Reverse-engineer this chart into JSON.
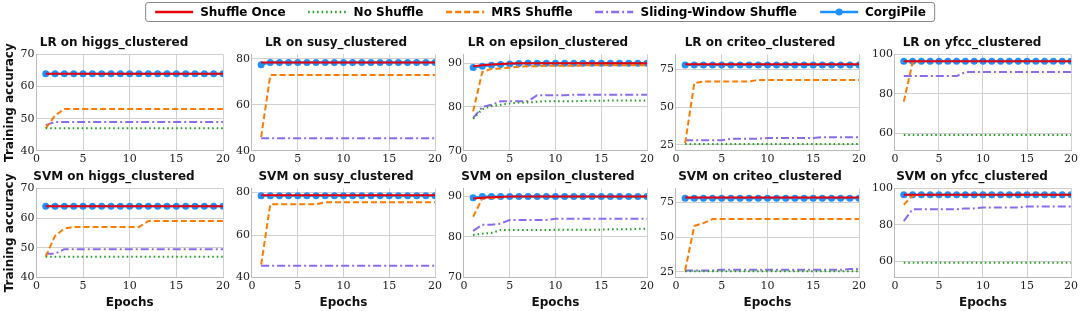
{
  "chart_data": [
    {
      "type": "line",
      "title": "LR on higgs_clustered",
      "ylabel": "Training accuracy",
      "x": [
        1,
        2,
        3,
        4,
        5,
        6,
        7,
        8,
        9,
        10,
        11,
        12,
        13,
        14,
        15,
        16,
        17,
        18,
        19,
        20
      ],
      "xlim": [
        0,
        20
      ],
      "xticks": [
        0,
        5,
        10,
        15,
        20
      ],
      "ylim": [
        40,
        70
      ],
      "yticks": [
        40,
        50,
        60,
        70
      ],
      "grid": true,
      "legend": "top",
      "series": [
        {
          "name": "Shuffle Once",
          "color": "#e8000b",
          "line_style": "solid",
          "marker": "none",
          "values": [
            64,
            64,
            64,
            64,
            64,
            64,
            64,
            64,
            64,
            64,
            64,
            64,
            64,
            64,
            64,
            64,
            64,
            64,
            64,
            64
          ]
        },
        {
          "name": "No Shuffle",
          "color": "#1a9e1a",
          "line_style": "dotted",
          "marker": "none",
          "values": [
            47,
            47,
            47,
            47,
            47,
            47,
            47,
            47,
            47,
            47,
            47,
            47,
            47,
            47,
            47,
            47,
            47,
            47,
            47,
            47
          ]
        },
        {
          "name": "MRS Shuffle",
          "color": "#ff7c00",
          "line_style": "dashed",
          "marker": "none",
          "values": [
            47,
            51,
            53,
            53,
            53,
            53,
            53,
            53,
            53,
            53,
            53,
            53,
            53,
            53,
            53,
            53,
            53,
            53,
            53,
            53
          ]
        },
        {
          "name": "Sliding-Window Shuffle",
          "color": "#8b6cf0",
          "line_style": "dashdot",
          "marker": "none",
          "values": [
            48,
            49,
            49,
            49,
            49,
            49,
            49,
            49,
            49,
            49,
            49,
            49,
            49,
            49,
            49,
            49,
            49,
            49,
            49,
            49
          ]
        },
        {
          "name": "CorgiPile",
          "color": "#1e90ff",
          "line_style": "solid",
          "marker": "circle",
          "values": [
            64,
            64,
            64,
            64,
            64,
            64,
            64,
            64,
            64,
            64,
            64,
            64,
            64,
            64,
            64,
            64,
            64,
            64,
            64,
            64
          ]
        }
      ]
    },
    {
      "type": "line",
      "title": "LR on susy_clustered",
      "x": [
        1,
        2,
        3,
        4,
        5,
        6,
        7,
        8,
        9,
        10,
        11,
        12,
        13,
        14,
        15,
        16,
        17,
        18,
        19,
        20
      ],
      "xlim": [
        0,
        20
      ],
      "xticks": [
        0,
        5,
        10,
        15,
        20
      ],
      "ylim": [
        40,
        82
      ],
      "yticks": [
        40,
        60,
        80
      ],
      "grid": true,
      "series": [
        {
          "color": "#e8000b",
          "line_style": "solid",
          "marker": "none",
          "values": [
            78.5,
            78.5,
            78.5,
            78.5,
            78.5,
            78.5,
            78.5,
            78.5,
            78.5,
            78.5,
            78.5,
            78.5,
            78.5,
            78.5,
            78.5,
            78.5,
            78.5,
            78.5,
            78.5,
            78.5
          ]
        },
        {
          "color": "#1a9e1a",
          "line_style": "dotted",
          "marker": "none",
          "values": [
            null,
            null,
            null,
            null,
            null,
            null,
            null,
            null,
            null,
            null,
            null,
            null,
            null,
            null,
            null,
            null,
            null,
            null,
            null,
            null
          ]
        },
        {
          "color": "#ff7c00",
          "line_style": "dashed",
          "marker": "none",
          "values": [
            46,
            73,
            73,
            73,
            73,
            73,
            73,
            73,
            73,
            73,
            73,
            73,
            73,
            73,
            73,
            73,
            73,
            73,
            73,
            73
          ]
        },
        {
          "color": "#8b6cf0",
          "line_style": "dashdot",
          "marker": "none",
          "values": [
            45.5,
            45.5,
            45.5,
            45.5,
            45.5,
            45.5,
            45.5,
            45.5,
            45.5,
            45.5,
            45.5,
            45.5,
            45.5,
            45.5,
            45.5,
            45.5,
            45.5,
            45.5,
            45.5,
            45.5
          ]
        },
        {
          "color": "#1e90ff",
          "line_style": "solid",
          "marker": "circle",
          "values": [
            77.5,
            78.5,
            78.5,
            78.5,
            78.5,
            78.5,
            78.5,
            78.5,
            78.5,
            78.5,
            78.5,
            78.5,
            78.5,
            78.5,
            78.5,
            78.5,
            78.5,
            78.5,
            78.5,
            78.5
          ]
        }
      ]
    },
    {
      "type": "line",
      "title": "LR on epsilon_clustered",
      "x": [
        1,
        2,
        3,
        4,
        5,
        6,
        7,
        8,
        9,
        10,
        11,
        12,
        13,
        14,
        15,
        16,
        17,
        18,
        19,
        20
      ],
      "xlim": [
        0,
        20
      ],
      "xticks": [
        0,
        5,
        10,
        15,
        20
      ],
      "ylim": [
        70,
        92
      ],
      "yticks": [
        70,
        80,
        90
      ],
      "grid": true,
      "series": [
        {
          "color": "#e8000b",
          "line_style": "solid",
          "marker": "none",
          "values": [
            89.3,
            89.5,
            89.7,
            89.8,
            89.9,
            90,
            90,
            90,
            90,
            90,
            90,
            90,
            90,
            90,
            90,
            90,
            90,
            90,
            90,
            90
          ]
        },
        {
          "color": "#1a9e1a",
          "line_style": "dotted",
          "marker": "none",
          "values": [
            77.3,
            79.5,
            80.2,
            80.5,
            80.8,
            81,
            81,
            81.2,
            81.3,
            81.3,
            81.3,
            81.3,
            81.4,
            81.4,
            81.4,
            81.5,
            81.5,
            81.5,
            81.5,
            81.5
          ]
        },
        {
          "color": "#ff7c00",
          "line_style": "dashed",
          "marker": "none",
          "values": [
            79,
            88,
            88.7,
            88.8,
            89,
            89.2,
            89.3,
            89.3,
            89.4,
            89.4,
            89.4,
            89.4,
            89.5,
            89.5,
            89.5,
            89.5,
            89.5,
            89.5,
            89.5,
            89.5
          ]
        },
        {
          "color": "#8b6cf0",
          "line_style": "dashdot",
          "marker": "none",
          "values": [
            77.5,
            80,
            80.5,
            81.3,
            81.3,
            81.3,
            81.3,
            82.7,
            82.7,
            82.7,
            82.7,
            82.8,
            82.8,
            82.8,
            82.8,
            82.8,
            82.8,
            82.8,
            82.8,
            82.8
          ]
        },
        {
          "color": "#1e90ff",
          "line_style": "solid",
          "marker": "circle",
          "values": [
            89,
            89.3,
            89.5,
            89.7,
            89.8,
            89.9,
            90,
            90,
            90,
            90,
            90,
            90,
            90,
            90,
            90,
            90,
            90,
            90,
            90,
            90
          ]
        }
      ]
    },
    {
      "type": "line",
      "title": "LR on criteo_clustered",
      "x": [
        1,
        2,
        3,
        4,
        5,
        6,
        7,
        8,
        9,
        10,
        11,
        12,
        13,
        14,
        15,
        16,
        17,
        18,
        19,
        20
      ],
      "xlim": [
        0,
        20
      ],
      "xticks": [
        0,
        5,
        10,
        15,
        20
      ],
      "ylim": [
        21,
        85
      ],
      "yticks": [
        25,
        50,
        75
      ],
      "grid": true,
      "series": [
        {
          "color": "#e8000b",
          "line_style": "solid",
          "marker": "none",
          "values": [
            78.5,
            78.5,
            78.5,
            78.5,
            78.5,
            78.5,
            78.5,
            78.5,
            78.5,
            78.5,
            78.5,
            78.5,
            78.5,
            78.5,
            78.5,
            78.5,
            78.5,
            78.5,
            78.5,
            78.5
          ]
        },
        {
          "color": "#1a9e1a",
          "line_style": "dotted",
          "marker": "none",
          "values": [
            25.5,
            25.5,
            25.5,
            25.5,
            25.5,
            25.5,
            25.5,
            25.5,
            25.5,
            25.5,
            25.5,
            25.5,
            25.5,
            25.5,
            25.5,
            25.5,
            25.5,
            25.5,
            25.5,
            25.5
          ]
        },
        {
          "color": "#ff7c00",
          "line_style": "dashed",
          "marker": "none",
          "values": [
            26,
            66,
            67,
            67,
            67,
            67,
            67,
            67,
            68,
            68,
            68,
            68,
            68,
            68,
            68,
            68,
            68,
            68,
            68,
            68
          ]
        },
        {
          "color": "#8b6cf0",
          "line_style": "dashdot",
          "marker": "none",
          "values": [
            28,
            28,
            28,
            28,
            28,
            29,
            29,
            29,
            29,
            29.5,
            29.5,
            29.5,
            29.5,
            29.5,
            29.5,
            30,
            30,
            30,
            30,
            30
          ]
        },
        {
          "color": "#1e90ff",
          "line_style": "solid",
          "marker": "circle",
          "values": [
            78,
            78,
            78,
            78,
            78,
            78,
            78,
            78,
            78,
            78,
            78,
            78,
            78,
            78,
            78,
            78,
            78,
            78,
            78,
            78
          ]
        }
      ]
    },
    {
      "type": "line",
      "title": "LR on yfcc_clustered",
      "x": [
        1,
        2,
        3,
        4,
        5,
        6,
        7,
        8,
        9,
        10,
        11,
        12,
        13,
        14,
        15,
        16,
        17,
        18,
        19,
        20
      ],
      "xlim": [
        0,
        20
      ],
      "xticks": [
        0,
        5,
        10,
        15,
        20
      ],
      "ylim": [
        51,
        100
      ],
      "yticks": [
        60,
        80,
        100
      ],
      "grid": true,
      "series": [
        {
          "color": "#e8000b",
          "line_style": "solid",
          "marker": "none",
          "values": [
            96.5,
            96.5,
            96.5,
            96.5,
            96.5,
            96.5,
            96.5,
            96.5,
            96.5,
            96.5,
            96.5,
            96.5,
            96.5,
            96.5,
            96.5,
            96.5,
            96.5,
            96.5,
            96.5,
            96.5
          ]
        },
        {
          "color": "#1a9e1a",
          "line_style": "dotted",
          "marker": "none",
          "values": [
            59,
            59,
            59,
            59,
            59,
            59,
            59,
            59,
            59,
            59,
            59,
            59,
            59,
            59,
            59,
            59,
            59,
            59,
            59,
            59
          ]
        },
        {
          "color": "#ff7c00",
          "line_style": "dashed",
          "marker": "none",
          "values": [
            76,
            96,
            96.5,
            null,
            null,
            null,
            null,
            null,
            null,
            null,
            null,
            null,
            null,
            null,
            null,
            null,
            null,
            null,
            null,
            null
          ]
        },
        {
          "color": "#8b6cf0",
          "line_style": "dashdot",
          "marker": "none",
          "values": [
            89,
            89,
            89,
            89,
            89,
            89,
            89,
            91,
            91,
            91,
            91,
            91,
            91,
            91,
            91,
            91,
            91,
            91,
            91,
            91
          ]
        },
        {
          "color": "#1e90ff",
          "line_style": "solid",
          "marker": "circle",
          "values": [
            96.5,
            96.5,
            96.5,
            96.5,
            96.5,
            96.5,
            96.5,
            96.5,
            96.5,
            96.5,
            96.5,
            96.5,
            96.5,
            96.5,
            96.5,
            96.5,
            96.5,
            96.5,
            96.5,
            96.5
          ]
        }
      ]
    },
    {
      "type": "line",
      "title": "SVM on higgs_clustered",
      "ylabel": "Training accuracy",
      "xlabel": "Epochs",
      "x": [
        1,
        2,
        3,
        4,
        5,
        6,
        7,
        8,
        9,
        10,
        11,
        12,
        13,
        14,
        15,
        16,
        17,
        18,
        19,
        20
      ],
      "xlim": [
        0,
        20
      ],
      "xticks": [
        0,
        5,
        10,
        15,
        20
      ],
      "ylim": [
        40,
        70
      ],
      "yticks": [
        40,
        50,
        60,
        70
      ],
      "grid": true,
      "series": [
        {
          "color": "#e8000b",
          "line_style": "solid",
          "marker": "none",
          "values": [
            64,
            64,
            64,
            64,
            64,
            64,
            64,
            64,
            64,
            64,
            64,
            64,
            64,
            64,
            64,
            64,
            64,
            64,
            64,
            64
          ]
        },
        {
          "color": "#1a9e1a",
          "line_style": "dotted",
          "marker": "none",
          "values": [
            47,
            47,
            47,
            47,
            47,
            47,
            47,
            47,
            47,
            47,
            47,
            47,
            47,
            47,
            47,
            47,
            47,
            47,
            47,
            47
          ]
        },
        {
          "color": "#ff7c00",
          "line_style": "dashed",
          "marker": "none",
          "values": [
            47,
            54,
            56.5,
            57,
            57,
            57,
            57,
            57,
            57,
            57,
            57,
            59,
            59,
            59,
            59,
            59,
            59,
            59,
            59,
            59
          ]
        },
        {
          "color": "#8b6cf0",
          "line_style": "dashdot",
          "marker": "none",
          "values": [
            48,
            48,
            49.5,
            49.5,
            49.5,
            49.5,
            49.5,
            49.5,
            49.5,
            49.5,
            49.5,
            49.5,
            49.5,
            49.5,
            49.5,
            49.5,
            49.5,
            49.5,
            49.5,
            49.5
          ]
        },
        {
          "color": "#1e90ff",
          "line_style": "solid",
          "marker": "circle",
          "values": [
            64,
            64,
            64,
            64,
            64,
            64,
            64,
            64,
            64,
            64,
            64,
            64,
            64,
            64,
            64,
            64,
            64,
            64,
            64,
            64
          ]
        }
      ]
    },
    {
      "type": "line",
      "title": "SVM on susy_clustered",
      "xlabel": "Epochs",
      "x": [
        1,
        2,
        3,
        4,
        5,
        6,
        7,
        8,
        9,
        10,
        11,
        12,
        13,
        14,
        15,
        16,
        17,
        18,
        19,
        20
      ],
      "xlim": [
        0,
        20
      ],
      "xticks": [
        0,
        5,
        10,
        15,
        20
      ],
      "ylim": [
        40,
        82
      ],
      "yticks": [
        40,
        60,
        80
      ],
      "grid": true,
      "series": [
        {
          "color": "#e8000b",
          "line_style": "solid",
          "marker": "none",
          "values": [
            78.8,
            78.8,
            78.8,
            78.8,
            78.8,
            78.8,
            78.8,
            78.8,
            78.8,
            78.8,
            78.8,
            78.8,
            78.8,
            78.8,
            78.8,
            78.8,
            78.8,
            78.8,
            78.8,
            78.8
          ]
        },
        {
          "color": "#1a9e1a",
          "line_style": "dotted",
          "marker": "none",
          "values": [
            null,
            null,
            null,
            null,
            null,
            null,
            null,
            null,
            null,
            null,
            null,
            null,
            null,
            null,
            null,
            null,
            null,
            null,
            null,
            null
          ]
        },
        {
          "color": "#ff7c00",
          "line_style": "dashed",
          "marker": "none",
          "values": [
            46,
            74.5,
            74.5,
            74.5,
            74.5,
            74.5,
            74.5,
            75.5,
            75.5,
            75.5,
            75.5,
            75.5,
            75.5,
            75.5,
            75.5,
            75.5,
            75.5,
            75.5,
            75.5,
            75.5
          ]
        },
        {
          "color": "#8b6cf0",
          "line_style": "dashdot",
          "marker": "none",
          "values": [
            45.5,
            45.5,
            45.5,
            45.5,
            45.5,
            45.5,
            45.5,
            45.5,
            45.5,
            45.5,
            45.5,
            45.5,
            45.5,
            45.5,
            45.5,
            45.5,
            45.5,
            45.5,
            45.5,
            45.5
          ]
        },
        {
          "color": "#1e90ff",
          "line_style": "solid",
          "marker": "circle",
          "values": [
            78.5,
            78.5,
            78.5,
            78.5,
            78.5,
            78.5,
            78.5,
            78.5,
            78.5,
            78.5,
            78.5,
            78.5,
            78.5,
            78.5,
            78.5,
            78.5,
            78.5,
            78.5,
            78.5,
            78.5
          ]
        }
      ]
    },
    {
      "type": "line",
      "title": "SVM on epsilon_clustered",
      "xlabel": "Epochs",
      "x": [
        1,
        2,
        3,
        4,
        5,
        6,
        7,
        8,
        9,
        10,
        11,
        12,
        13,
        14,
        15,
        16,
        17,
        18,
        19,
        20
      ],
      "xlim": [
        0,
        20
      ],
      "xticks": [
        0,
        5,
        10,
        15,
        20
      ],
      "ylim": [
        70,
        92
      ],
      "yticks": [
        70,
        80,
        90
      ],
      "grid": true,
      "series": [
        {
          "color": "#e8000b",
          "line_style": "solid",
          "marker": "none",
          "values": [
            89.5,
            89.7,
            89.8,
            89.9,
            90,
            90,
            90,
            90,
            90,
            90,
            90,
            90,
            90,
            90,
            90,
            90,
            90,
            90,
            90,
            90
          ]
        },
        {
          "color": "#1a9e1a",
          "line_style": "dotted",
          "marker": "none",
          "values": [
            80.5,
            80.8,
            81,
            81.7,
            81.7,
            81.7,
            81.7,
            81.7,
            81.7,
            81.8,
            81.8,
            81.8,
            81.8,
            81.8,
            81.8,
            81.9,
            81.9,
            81.9,
            82,
            82
          ]
        },
        {
          "color": "#ff7c00",
          "line_style": "dashed",
          "marker": "none",
          "values": [
            85,
            89.5,
            89.6,
            89.7,
            null,
            null,
            null,
            null,
            null,
            null,
            null,
            null,
            null,
            null,
            null,
            null,
            null,
            null,
            null,
            null
          ]
        },
        {
          "color": "#8b6cf0",
          "line_style": "dashdot",
          "marker": "none",
          "values": [
            81.5,
            83,
            83,
            83.3,
            84.2,
            84.2,
            84.2,
            84.2,
            84.2,
            84.5,
            84.5,
            84.5,
            84.5,
            84.5,
            84.5,
            84.5,
            84.5,
            84.5,
            84.5,
            84.5
          ]
        },
        {
          "color": "#1e90ff",
          "line_style": "solid",
          "marker": "circle",
          "values": [
            89.7,
            90,
            90,
            90,
            90,
            90,
            90,
            90,
            90,
            90,
            90,
            90,
            90,
            90,
            90,
            90,
            90,
            90,
            90,
            90
          ]
        }
      ]
    },
    {
      "type": "line",
      "title": "SVM on criteo_clustered",
      "xlabel": "Epochs",
      "x": [
        1,
        2,
        3,
        4,
        5,
        6,
        7,
        8,
        9,
        10,
        11,
        12,
        13,
        14,
        15,
        16,
        17,
        18,
        19,
        20
      ],
      "xlim": [
        0,
        20
      ],
      "xticks": [
        0,
        5,
        10,
        15,
        20
      ],
      "ylim": [
        21,
        85
      ],
      "yticks": [
        25,
        50,
        75
      ],
      "grid": true,
      "series": [
        {
          "color": "#e8000b",
          "line_style": "solid",
          "marker": "none",
          "values": [
            78.5,
            78.5,
            78.5,
            78.5,
            78.5,
            78.5,
            78.5,
            78.5,
            78.5,
            78.5,
            78.5,
            78.5,
            78.5,
            78.5,
            78.5,
            78.5,
            78.5,
            78.5,
            78.5,
            78.5
          ]
        },
        {
          "color": "#1a9e1a",
          "line_style": "dotted",
          "marker": "none",
          "values": [
            25.5,
            25.5,
            25.5,
            25.5,
            25.5,
            25.5,
            25.5,
            25.5,
            25.5,
            25.5,
            25.5,
            25.5,
            25.5,
            25.5,
            25.5,
            25.5,
            25.5,
            25.5,
            25.5,
            25.5
          ]
        },
        {
          "color": "#ff7c00",
          "line_style": "dashed",
          "marker": "none",
          "values": [
            26,
            58,
            60,
            63,
            63,
            63,
            63,
            63,
            63,
            63,
            63,
            63,
            63,
            63,
            63,
            63,
            63,
            63,
            63,
            63
          ]
        },
        {
          "color": "#8b6cf0",
          "line_style": "dashdot",
          "marker": "none",
          "values": [
            26,
            26,
            26,
            26,
            26.5,
            26.5,
            26.5,
            26.5,
            26.5,
            26.5,
            26.5,
            26.5,
            26.5,
            26.5,
            26.5,
            26.5,
            26.5,
            26.5,
            27,
            27
          ]
        },
        {
          "color": "#1e90ff",
          "line_style": "solid",
          "marker": "circle",
          "values": [
            78,
            78,
            78,
            78,
            78,
            78,
            78,
            78,
            78,
            78,
            78,
            78,
            78,
            78,
            78,
            78,
            78,
            78,
            78,
            78
          ]
        }
      ]
    },
    {
      "type": "line",
      "title": "SVM on yfcc_clustered",
      "xlabel": "Epochs",
      "x": [
        1,
        2,
        3,
        4,
        5,
        6,
        7,
        8,
        9,
        10,
        11,
        12,
        13,
        14,
        15,
        16,
        17,
        18,
        19,
        20
      ],
      "xlim": [
        0,
        20
      ],
      "xticks": [
        0,
        5,
        10,
        15,
        20
      ],
      "ylim": [
        51,
        100
      ],
      "yticks": [
        60,
        80,
        100
      ],
      "grid": true,
      "series": [
        {
          "color": "#e8000b",
          "line_style": "solid",
          "marker": "none",
          "values": [
            96.5,
            96.5,
            96.5,
            96.5,
            96.5,
            96.5,
            96.5,
            96.5,
            96.5,
            96.5,
            96.5,
            96.5,
            96.5,
            96.5,
            96.5,
            96.5,
            96.5,
            96.5,
            96.5,
            96.5
          ]
        },
        {
          "color": "#1a9e1a",
          "line_style": "dotted",
          "marker": "none",
          "values": [
            59,
            59,
            59,
            59,
            59,
            59,
            59,
            59,
            59,
            59,
            59,
            59,
            59,
            59,
            59,
            59,
            59,
            59,
            59,
            59
          ]
        },
        {
          "color": "#ff7c00",
          "line_style": "dashed",
          "marker": "none",
          "values": [
            91,
            96,
            96.5,
            null,
            null,
            null,
            null,
            null,
            null,
            null,
            null,
            null,
            null,
            null,
            null,
            null,
            null,
            null,
            null,
            null
          ]
        },
        {
          "color": "#8b6cf0",
          "line_style": "dashdot",
          "marker": "none",
          "values": [
            82,
            88.5,
            88.5,
            88.5,
            88.5,
            88.5,
            88.5,
            89,
            89,
            89.5,
            89.5,
            89.5,
            89.5,
            89.5,
            90,
            90,
            90,
            90,
            90,
            90
          ]
        },
        {
          "color": "#1e90ff",
          "line_style": "solid",
          "marker": "circle",
          "values": [
            96.5,
            96.5,
            96.5,
            96.5,
            96.5,
            96.5,
            96.5,
            96.5,
            96.5,
            96.5,
            96.5,
            96.5,
            96.5,
            96.5,
            96.5,
            96.5,
            96.5,
            96.5,
            96.5,
            96.5
          ]
        }
      ]
    }
  ]
}
